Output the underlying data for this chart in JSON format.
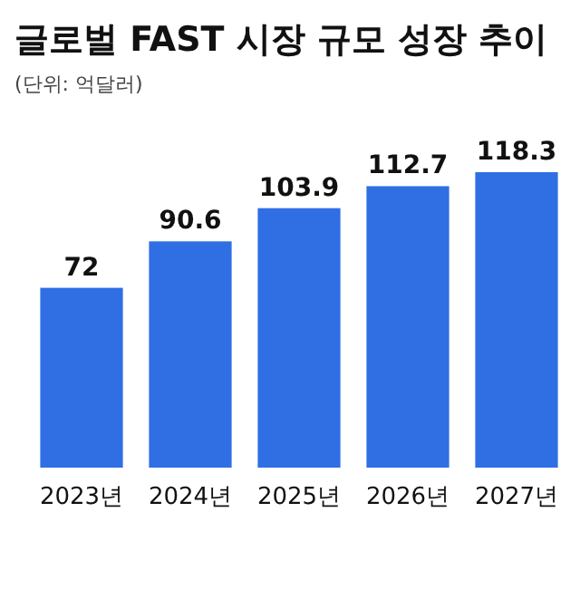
{
  "chart_data": {
    "type": "bar",
    "title": "글로벌 FAST 시장 규모 성장 추이",
    "subtitle": "(단위: 억달러)",
    "categories": [
      "2023년",
      "2024년",
      "2025년",
      "2026년",
      "2027년"
    ],
    "values": [
      72,
      90.6,
      103.9,
      112.7,
      118.3
    ],
    "color": "#2f6fe3",
    "data_labels": true
  }
}
